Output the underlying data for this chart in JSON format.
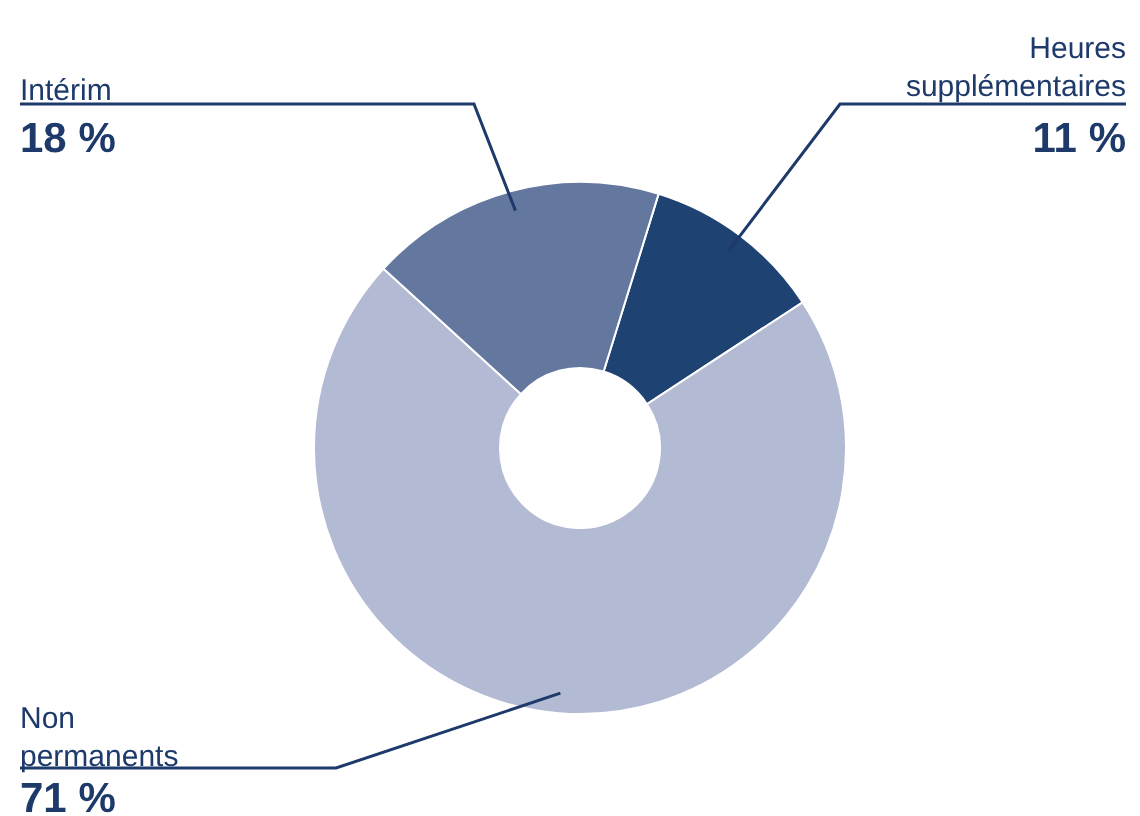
{
  "chart_data": {
    "type": "donut",
    "categories": [
      "Heures supplémentaires",
      "Non permanents",
      "Intérim"
    ],
    "values": [
      11,
      71,
      18
    ],
    "colors": [
      "#1e4373",
      "#b3bbd4",
      "#63779f"
    ],
    "value_labels": [
      "11 %",
      "71 %",
      "18 %"
    ]
  }
}
